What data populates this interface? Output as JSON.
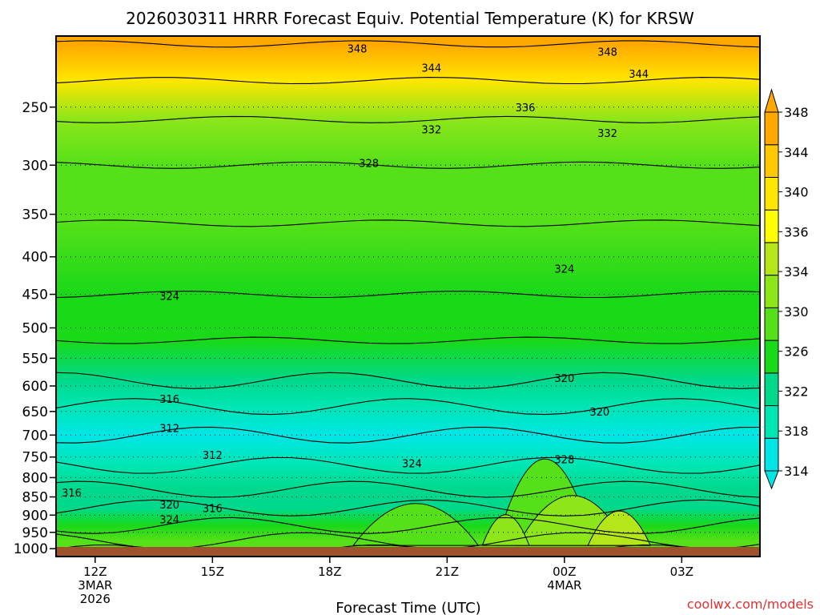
{
  "chart_data": {
    "type": "heatmap",
    "title": "2026030311 HRRR Forecast Equiv. Potential Temperature (K) for KRSW",
    "xlabel": "Forecast Time (UTC)",
    "ylabel": "",
    "x_ticks": [
      {
        "hour": 12,
        "label": "12Z",
        "sub1": "3MAR",
        "sub2": "2026"
      },
      {
        "hour": 15,
        "label": "15Z",
        "sub1": "",
        "sub2": ""
      },
      {
        "hour": 18,
        "label": "18Z",
        "sub1": "",
        "sub2": ""
      },
      {
        "hour": 21,
        "label": "21Z",
        "sub1": "",
        "sub2": ""
      },
      {
        "hour": 24,
        "label": "00Z",
        "sub1": "4MAR",
        "sub2": ""
      },
      {
        "hour": 27,
        "label": "03Z",
        "sub1": "",
        "sub2": ""
      }
    ],
    "x_range_hours": [
      11,
      29
    ],
    "y_scale": "log",
    "y_range_hPa": [
      1025,
      200
    ],
    "y_ticks": [
      "250",
      "300",
      "350",
      "400",
      "450",
      "500",
      "550",
      "600",
      "650",
      "700",
      "750",
      "800",
      "850",
      "900",
      "950",
      "1000"
    ],
    "colorbar": {
      "levels": [
        "314",
        "318",
        "322",
        "326",
        "330",
        "334",
        "336",
        "340",
        "344",
        "348"
      ],
      "colors": [
        "#00e6e6",
        "#00e6b3",
        "#00d98c",
        "#19d919",
        "#55e019",
        "#8ce619",
        "#b4e619",
        "#ffff00",
        "#ffe600",
        "#ffc800",
        "#ffa800"
      ]
    },
    "bands": [
      {
        "pressure": 1013,
        "value": 328
      },
      {
        "pressure": 975,
        "value": 326
      },
      {
        "pressure": 930,
        "value": 324
      },
      {
        "pressure": 880,
        "value": 320
      },
      {
        "pressure": 830,
        "value": 318
      },
      {
        "pressure": 770,
        "value": 314
      },
      {
        "pressure": 700,
        "value": 313
      },
      {
        "pressure": 640,
        "value": 316
      },
      {
        "pressure": 590,
        "value": 320
      },
      {
        "pressure": 520,
        "value": 322
      },
      {
        "pressure": 450,
        "value": 324
      },
      {
        "pressure": 360,
        "value": 326
      },
      {
        "pressure": 300,
        "value": 328
      },
      {
        "pressure": 260,
        "value": 332
      },
      {
        "pressure": 230,
        "value": 340
      },
      {
        "pressure": 205,
        "value": 348
      }
    ],
    "contour_labels": [
      {
        "text": "348",
        "hour": 18.7,
        "pressure": 208
      },
      {
        "text": "348",
        "hour": 25.1,
        "pressure": 210
      },
      {
        "text": "344",
        "hour": 20.6,
        "pressure": 221
      },
      {
        "text": "344",
        "hour": 25.9,
        "pressure": 225
      },
      {
        "text": "336",
        "hour": 23.0,
        "pressure": 250
      },
      {
        "text": "332",
        "hour": 20.6,
        "pressure": 268
      },
      {
        "text": "332",
        "hour": 25.1,
        "pressure": 271
      },
      {
        "text": "328",
        "hour": 19.0,
        "pressure": 298
      },
      {
        "text": "324",
        "hour": 24.0,
        "pressure": 415
      },
      {
        "text": "324",
        "hour": 13.9,
        "pressure": 452
      },
      {
        "text": "320",
        "hour": 24.0,
        "pressure": 585
      },
      {
        "text": "320",
        "hour": 24.9,
        "pressure": 650
      },
      {
        "text": "316",
        "hour": 13.9,
        "pressure": 625
      },
      {
        "text": "312",
        "hour": 13.9,
        "pressure": 685
      },
      {
        "text": "312",
        "hour": 15.0,
        "pressure": 745
      },
      {
        "text": "324",
        "hour": 20.1,
        "pressure": 765
      },
      {
        "text": "328",
        "hour": 24.0,
        "pressure": 755
      },
      {
        "text": "316",
        "hour": 11.4,
        "pressure": 838
      },
      {
        "text": "320",
        "hour": 13.9,
        "pressure": 870
      },
      {
        "text": "316",
        "hour": 15.0,
        "pressure": 880
      },
      {
        "text": "324",
        "hour": 13.9,
        "pressure": 912
      }
    ],
    "legend": "right",
    "grid": true,
    "colors": {
      "ground": "#a0522d",
      "credit": "#dd3333"
    }
  },
  "credit": "coolwx.com/models"
}
